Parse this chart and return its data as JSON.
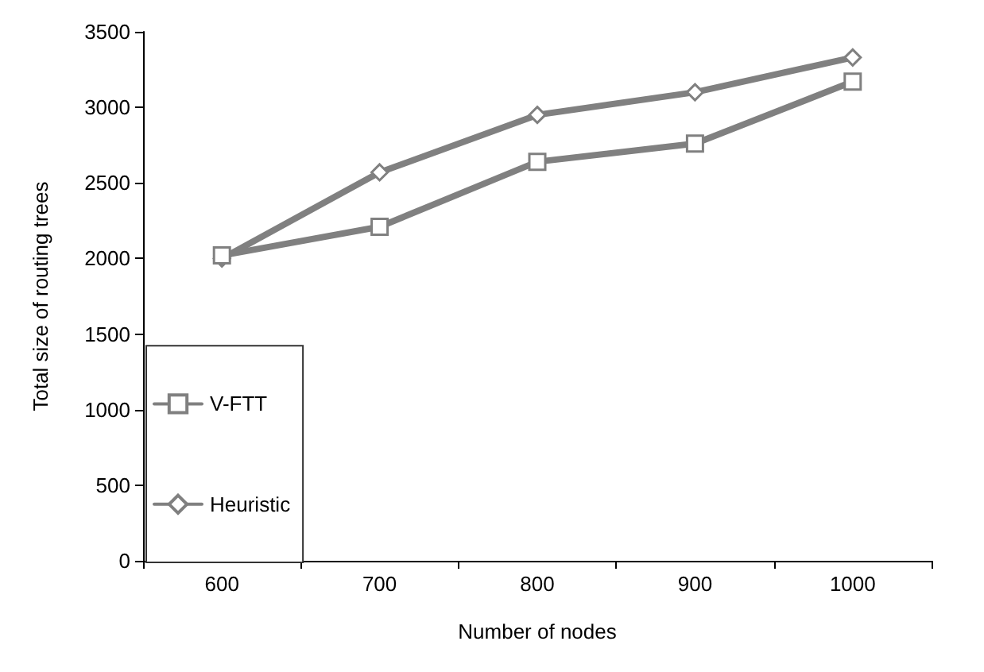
{
  "chart_data": {
    "type": "line",
    "xlabel": "Number of nodes",
    "ylabel": "Total size of routing trees",
    "categories": [
      "600",
      "700",
      "800",
      "900",
      "1000"
    ],
    "series": [
      {
        "name": "V-FTT",
        "color": "#808080",
        "marker": "square",
        "values": [
          2020,
          2210,
          2640,
          2760,
          3170
        ]
      },
      {
        "name": "Heuristic",
        "color": "#808080",
        "marker": "diamond",
        "values": [
          2000,
          2570,
          2950,
          3100,
          3330
        ]
      }
    ],
    "ylim": [
      0,
      3500
    ],
    "yticks": [
      0,
      500,
      1000,
      1500,
      2000,
      2500,
      3000,
      3500
    ],
    "grid": false,
    "legend": "bottom left",
    "line_style": "solid"
  }
}
